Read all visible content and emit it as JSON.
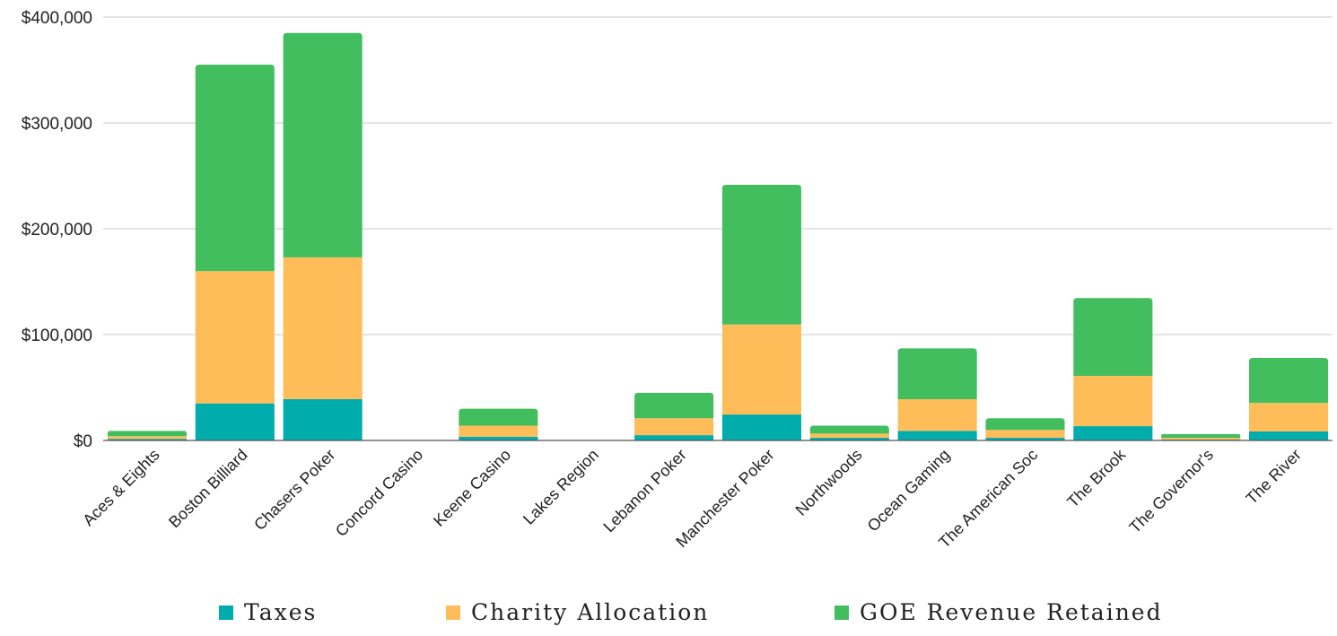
{
  "chart_data": {
    "type": "bar",
    "stacked": true,
    "title": "",
    "xlabel": "",
    "ylabel": "",
    "ylim": [
      0,
      400000
    ],
    "yticks": [
      0,
      100000,
      200000,
      300000,
      400000
    ],
    "ytick_labels": [
      "$0",
      "$100,000",
      "$200,000",
      "$300,000",
      "$400,000"
    ],
    "grid": true,
    "legend_position": "bottom",
    "categories": [
      "Aces & Eights",
      "Boston Billiard",
      "Chasers Poker",
      "Concord Casino",
      "Keene Casino",
      "Lakes Region",
      "Lebanon Poker",
      "Manchester Poker",
      "Northwoods",
      "Ocean Gaming",
      "The American Soc",
      "The Brook",
      "The Governor's",
      "The River"
    ],
    "series": [
      {
        "name": "Taxes",
        "color": "#00ACAC",
        "values": [
          1500,
          35000,
          39000,
          0,
          3500,
          0,
          5000,
          24500,
          2500,
          9000,
          2500,
          13500,
          800,
          8500
        ]
      },
      {
        "name": "Charity Allocation",
        "color": "#FFBD59",
        "values": [
          2500,
          125000,
          134000,
          0,
          10500,
          0,
          16000,
          85000,
          4000,
          30000,
          7500,
          47500,
          1700,
          27000
        ]
      },
      {
        "name": "GOE Revenue Retained",
        "color": "#42BE5F",
        "values": [
          5000,
          195000,
          212000,
          0,
          16000,
          0,
          24000,
          132000,
          7500,
          48000,
          11000,
          73500,
          3500,
          42500
        ]
      }
    ]
  }
}
